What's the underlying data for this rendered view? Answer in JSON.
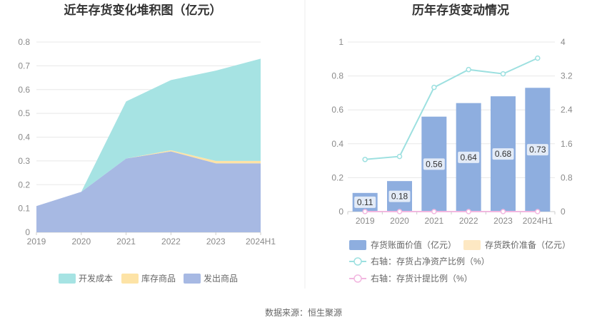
{
  "chart_data": [
    {
      "type": "area",
      "title": "近年存货变化堆积图（亿元）",
      "categories": [
        "2019",
        "2020",
        "2021",
        "2022",
        "2023",
        "2024H1"
      ],
      "stacked": true,
      "ylim": [
        0,
        0.8
      ],
      "yticks": [
        "0",
        "0.1",
        "0.2",
        "0.3",
        "0.4",
        "0.5",
        "0.6",
        "0.7",
        "0.8"
      ],
      "series": [
        {
          "name": "发出商品",
          "color": "#a7b9e3",
          "values": [
            0.11,
            0.17,
            0.31,
            0.34,
            0.29,
            0.29
          ]
        },
        {
          "name": "库存商品",
          "color": "#fde3a6",
          "values": [
            0,
            0,
            0,
            0.005,
            0.01,
            0.01
          ]
        },
        {
          "name": "开发成本",
          "color": "#a6e3e3",
          "values": [
            0,
            0,
            0.24,
            0.295,
            0.38,
            0.43
          ]
        }
      ],
      "legend": {
        "position": "bottom",
        "order": [
          "开发成本",
          "库存商品",
          "发出商品"
        ]
      },
      "grid": true
    },
    {
      "type": "bar",
      "title": "历年存货变动情况",
      "categories": [
        "2019",
        "2020",
        "2021",
        "2022",
        "2023",
        "2024H1"
      ],
      "ylim": [
        0,
        1
      ],
      "yticks": [
        "0",
        "0.2",
        "0.4",
        "0.6",
        "0.8",
        "1"
      ],
      "y2lim": [
        0,
        4
      ],
      "y2ticks": [
        "0",
        "0.8",
        "1.6",
        "2.4",
        "3.2",
        "4"
      ],
      "series": [
        {
          "name": "存货账面价值（亿元）",
          "type": "bar",
          "color": "#8eaedf",
          "values": [
            0.11,
            0.18,
            0.56,
            0.64,
            0.68,
            0.73
          ],
          "labels": [
            "0.11",
            "0.18",
            "0.56",
            "0.64",
            "0.68",
            "0.73"
          ]
        },
        {
          "name": "存货跌价准备（亿元）",
          "type": "bar",
          "color": "#fde8c3",
          "values": [
            0,
            0,
            0,
            0,
            0,
            0
          ]
        },
        {
          "name": "右轴：存货占净资产比例（%）",
          "type": "line",
          "axis": "right",
          "color": "#9de0e0",
          "values": [
            1.23,
            1.3,
            2.93,
            3.35,
            3.25,
            3.62
          ]
        },
        {
          "name": "右轴：存货计提比例（%）",
          "type": "line",
          "axis": "right",
          "color": "#f2b7e0",
          "values": [
            0,
            0,
            0,
            0,
            0,
            0
          ]
        }
      ],
      "legend": {
        "position": "bottom"
      },
      "grid": true
    }
  ],
  "footer": {
    "source": "数据来源：恒生聚源"
  }
}
